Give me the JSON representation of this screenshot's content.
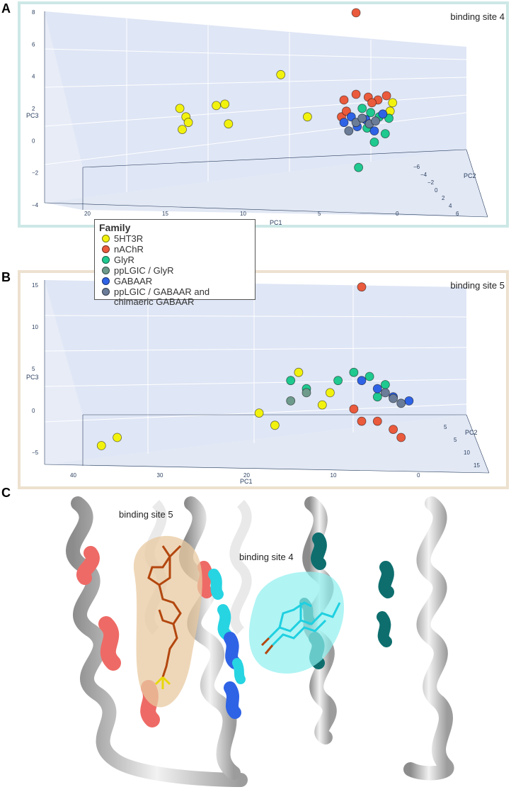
{
  "panels": {
    "a_letter": "A",
    "b_letter": "B",
    "c_letter": "C"
  },
  "legend": {
    "title": "Family",
    "items": [
      {
        "label": "5HT3R",
        "color": "#f2f20f"
      },
      {
        "label": "nAChR",
        "color": "#ea5a3c"
      },
      {
        "label": "GlyR",
        "color": "#1fc98f"
      },
      {
        "label": "ppLGIC / GlyR",
        "color": "#6e9b8c"
      },
      {
        "label": "GABAAR",
        "color": "#2f63e6"
      },
      {
        "label": "ppLGIC / GABAAR and chimaeric GABAAR",
        "color": "#6a7c97"
      }
    ]
  },
  "chart_data": [
    {
      "type": "scatter",
      "title": "binding site 4",
      "xlabel": "PC1",
      "ylabel": "PC2",
      "zlabel": "PC3",
      "x_ticks": [
        "20",
        "15",
        "10",
        "5",
        "0"
      ],
      "y_ticks": [
        "−6",
        "−4",
        "−2",
        "0",
        "2",
        "4",
        "6"
      ],
      "z_ticks": [
        "8",
        "6",
        "4",
        "2",
        "0",
        "−2",
        "−4"
      ],
      "series": [
        {
          "name": "5HT3R",
          "values": [
            [
              16.5,
              0,
              1.2
            ],
            [
              16.0,
              0,
              0.6
            ],
            [
              15.8,
              0,
              0.2
            ],
            [
              16.3,
              0,
              -0.3
            ],
            [
              13.5,
              0,
              1.4
            ],
            [
              12.8,
              0,
              1.5
            ],
            [
              12.5,
              0,
              0.1
            ],
            [
              8.2,
              0,
              3.6
            ],
            [
              6.0,
              0,
              0.6
            ],
            [
              -0.8,
              0,
              1.0
            ],
            [
              -1.0,
              0,
              1.6
            ]
          ]
        },
        {
          "name": "nAChR",
          "values": [
            [
              2.0,
              0,
              8.0
            ],
            [
              3.0,
              0,
              1.8
            ],
            [
              2.0,
              0,
              2.2
            ],
            [
              1.0,
              0,
              2.0
            ],
            [
              0.2,
              0,
              1.8
            ],
            [
              -0.5,
              0,
              2.1
            ],
            [
              3.2,
              0,
              0.6
            ],
            [
              2.8,
              0,
              1.0
            ],
            [
              0.7,
              0,
              1.6
            ]
          ]
        },
        {
          "name": "GlyR",
          "values": [
            [
              1.5,
              0,
              1.2
            ],
            [
              0.8,
              0,
              0.9
            ],
            [
              0.1,
              0,
              0.6
            ],
            [
              1.1,
              0,
              -0.2
            ],
            [
              -0.4,
              0,
              -0.6
            ],
            [
              0.5,
              0,
              -1.2
            ],
            [
              1.8,
              0,
              -3.0
            ],
            [
              -0.7,
              0,
              0.5
            ]
          ]
        },
        {
          "name": "GABAAR",
          "values": [
            [
              3.0,
              0,
              0.2
            ],
            [
              2.4,
              0,
              0.6
            ],
            [
              1.9,
              0,
              -0.1
            ],
            [
              1.2,
              0,
              0.4
            ],
            [
              0.5,
              0,
              -0.4
            ],
            [
              -0.2,
              0,
              0.8
            ]
          ]
        },
        {
          "name": "ppLGIC / GABAAR and chimaeric GABAAR",
          "values": [
            [
              2.6,
              0,
              -0.4
            ],
            [
              2.0,
              0,
              0.2
            ],
            [
              1.5,
              0,
              0.5
            ],
            [
              0.9,
              0,
              0.1
            ],
            [
              0.4,
              0,
              0.3
            ]
          ]
        }
      ]
    },
    {
      "type": "scatter",
      "title": "binding site 5",
      "xlabel": "PC1",
      "ylabel": "PC2",
      "zlabel": "PC3",
      "x_ticks": [
        "40",
        "30",
        "20",
        "10",
        "0"
      ],
      "y_ticks": [
        "5",
        "5",
        "10",
        "15"
      ],
      "z_ticks": [
        "15",
        "10",
        "5",
        "0",
        "−5"
      ],
      "series": [
        {
          "name": "5HT3R",
          "values": [
            [
              38,
              0,
              -5
            ],
            [
              36,
              0,
              -4
            ],
            [
              18,
              0,
              -1
            ],
            [
              16,
              0,
              -2.5
            ],
            [
              13,
              0,
              4
            ],
            [
              10,
              0,
              0
            ],
            [
              9,
              0,
              1.5
            ]
          ]
        },
        {
          "name": "nAChR",
          "values": [
            [
              5,
              0,
              14.5
            ],
            [
              6,
              0,
              -0.5
            ],
            [
              3,
              0,
              -2
            ],
            [
              1,
              0,
              -3
            ],
            [
              0,
              0,
              -4
            ],
            [
              5,
              0,
              -2
            ]
          ]
        },
        {
          "name": "GlyR",
          "values": [
            [
              14,
              0,
              3
            ],
            [
              12,
              0,
              2
            ],
            [
              8,
              0,
              3
            ],
            [
              6,
              0,
              4
            ],
            [
              4,
              0,
              3.5
            ],
            [
              2,
              0,
              2.5
            ],
            [
              3,
              0,
              1
            ]
          ]
        },
        {
          "name": "ppLGIC / GlyR",
          "values": [
            [
              14,
              0,
              0.5
            ],
            [
              12,
              0,
              1.5
            ]
          ]
        },
        {
          "name": "GABAAR",
          "values": [
            [
              5,
              0,
              3
            ],
            [
              3,
              0,
              2
            ],
            [
              1,
              0,
              1
            ],
            [
              -1,
              0,
              0.5
            ]
          ]
        },
        {
          "name": "ppLGIC / GABAAR and chimaeric GABAAR",
          "values": [
            [
              2,
              0,
              1.5
            ],
            [
              1,
              0,
              0.8
            ],
            [
              0,
              0,
              0.2
            ]
          ]
        }
      ]
    }
  ],
  "structure": {
    "label_site5": "binding site 5",
    "label_site4": "binding site 4"
  }
}
